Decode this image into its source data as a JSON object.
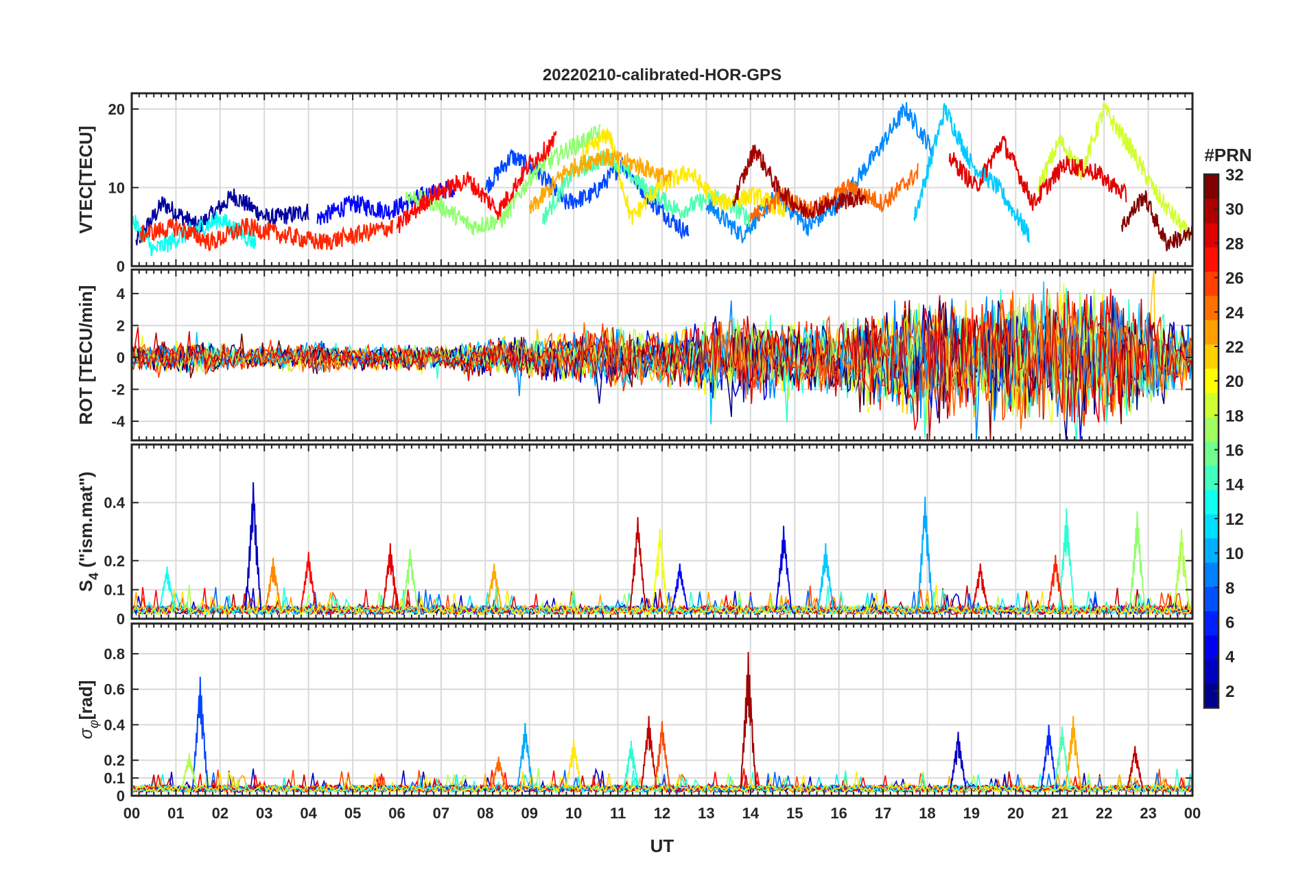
{
  "chart_data": {
    "type": "line",
    "title": "20220210-calibrated-HOR-GPS",
    "xlabel": "UT",
    "x_tick_labels": [
      "00",
      "01",
      "02",
      "03",
      "04",
      "05",
      "06",
      "07",
      "08",
      "09",
      "10",
      "11",
      "12",
      "13",
      "14",
      "15",
      "16",
      "17",
      "18",
      "19",
      "20",
      "21",
      "22",
      "23",
      "00"
    ],
    "xlim": [
      0,
      24
    ],
    "grid": true,
    "colormap": "jet",
    "colorbar": {
      "label": "#PRN",
      "range": [
        1,
        32
      ],
      "tick_values": [
        2,
        4,
        6,
        8,
        10,
        12,
        14,
        16,
        18,
        20,
        22,
        24,
        26,
        28,
        30,
        32
      ],
      "tick_labels": [
        "2",
        "4",
        "6",
        "8",
        "10",
        "12",
        "14",
        "16",
        "18",
        "20",
        "22",
        "24",
        "26",
        "28",
        "30",
        "32"
      ],
      "colors": [
        "#00008f",
        "#0000bf",
        "#0000ef",
        "#0020ff",
        "#0050ff",
        "#0080ff",
        "#00afff",
        "#00dfff",
        "#10ffef",
        "#40ffbf",
        "#70ff8f",
        "#9fff60",
        "#cfff30",
        "#ffff00",
        "#ffcf00",
        "#ff9f00",
        "#ff7000",
        "#ff4000",
        "#ff1000",
        "#df0000",
        "#af0000",
        "#800000"
      ]
    },
    "panels": [
      {
        "id": "vtec",
        "ylabel": "VTEC[TECU]",
        "ylim": [
          0,
          22
        ],
        "y_tick_values": [
          0,
          10,
          20
        ],
        "y_tick_labels": [
          "0",
          "10",
          "20"
        ],
        "series": [
          {
            "prn": 2,
            "x": [
              0.1,
              0.7,
              1.5,
              2.3,
              3.1,
              4.0
            ],
            "y": [
              3,
              8,
              5,
              9,
              6,
              7
            ]
          },
          {
            "prn": 5,
            "x": [
              4.2,
              5.0,
              5.8,
              6.6,
              7.3
            ],
            "y": [
              6,
              8,
              7,
              9,
              10
            ]
          },
          {
            "prn": 7,
            "x": [
              8.0,
              8.6,
              9.2,
              9.8,
              10.4,
              11.1,
              11.8,
              12.6
            ],
            "y": [
              10,
              14,
              12,
              8,
              9,
              13,
              8,
              4
            ]
          },
          {
            "prn": 9,
            "x": [
              13.0,
              13.8,
              14.6,
              15.3,
              16.0,
              16.8,
              17.5,
              18.1
            ],
            "y": [
              8,
              4,
              9,
              5,
              8,
              14,
              20,
              15
            ]
          },
          {
            "prn": 11,
            "x": [
              17.7,
              18.4,
              19.0,
              19.6,
              20.3
            ],
            "y": [
              6,
              20,
              13,
              10,
              4
            ]
          },
          {
            "prn": 13,
            "x": [
              0.0,
              0.5,
              1.2,
              2.0,
              2.8
            ],
            "y": [
              6,
              2,
              4,
              6,
              3
            ]
          },
          {
            "prn": 15,
            "x": [
              9.3,
              10.0,
              10.8,
              11.6,
              12.4,
              13.2,
              14.0
            ],
            "y": [
              6,
              12,
              14,
              10,
              7,
              9,
              6
            ]
          },
          {
            "prn": 17,
            "x": [
              6.2,
              6.9,
              7.7,
              8.4,
              9.1,
              9.9,
              10.6
            ],
            "y": [
              9,
              8,
              5,
              6,
              12,
              15,
              17
            ]
          },
          {
            "prn": 19,
            "x": [
              20.5,
              21.0,
              21.5,
              22.0,
              22.6,
              23.2,
              23.9
            ],
            "y": [
              10,
              16,
              12,
              20,
              15,
              9,
              4
            ]
          },
          {
            "prn": 21,
            "x": [
              10.2,
              10.8,
              11.3,
              11.9,
              12.6,
              13.3,
              14.1,
              14.8
            ],
            "y": [
              14,
              17,
              6,
              10,
              12,
              8,
              9,
              7
            ]
          },
          {
            "prn": 23,
            "x": [
              9.0,
              9.8,
              10.6,
              11.4,
              12.2
            ],
            "y": [
              7,
              12,
              14,
              13,
              11
            ]
          },
          {
            "prn": 25,
            "x": [
              14.0,
              14.7,
              15.4,
              16.2,
              17.0,
              17.8
            ],
            "y": [
              6,
              9,
              7,
              10,
              8,
              12
            ]
          },
          {
            "prn": 27,
            "x": [
              0.2,
              1.0,
              1.8,
              2.6,
              3.4,
              4.3,
              5.1,
              5.9
            ],
            "y": [
              4,
              5,
              3,
              5,
              4,
              3,
              4,
              5
            ]
          },
          {
            "prn": 28,
            "x": [
              6.0,
              6.8,
              7.6,
              8.3,
              9.0,
              9.6
            ],
            "y": [
              5,
              9,
              11,
              7,
              13,
              16
            ]
          },
          {
            "prn": 29,
            "x": [
              18.5,
              19.1,
              19.7,
              20.4,
              21.1,
              21.8,
              22.5
            ],
            "y": [
              14,
              10,
              16,
              8,
              13,
              12,
              9
            ]
          },
          {
            "prn": 31,
            "x": [
              13.6,
              14.1,
              14.6,
              15.2,
              15.9,
              16.6
            ],
            "y": [
              8,
              15,
              10,
              7,
              8,
              9
            ]
          },
          {
            "prn": 32,
            "x": [
              22.4,
              22.9,
              23.4,
              24.0
            ],
            "y": [
              5,
              9,
              3,
              4
            ]
          }
        ]
      },
      {
        "id": "rot",
        "ylabel": "ROT [TECU/min]",
        "ylim": [
          -5.2,
          5.5
        ],
        "y_tick_values": [
          -4,
          -2,
          0,
          2,
          4
        ],
        "y_tick_labels": [
          "-4",
          "-2",
          "0",
          "2",
          "4"
        ],
        "activity": {
          "x": [
            0,
            1,
            2,
            3,
            4,
            5,
            6,
            7,
            8,
            9,
            10,
            11,
            12,
            13,
            14,
            15,
            16,
            17,
            18,
            19,
            20,
            21,
            22,
            23,
            24
          ],
          "amplitude": [
            0.9,
            1.2,
            1.0,
            0.7,
            1.2,
            0.8,
            0.9,
            0.8,
            1.4,
            1.5,
            1.8,
            2.2,
            1.8,
            2.6,
            3.2,
            2.6,
            2.5,
            3.6,
            4.5,
            4.0,
            4.8,
            5.2,
            5.0,
            3.6,
            2.0
          ]
        }
      },
      {
        "id": "s4",
        "ylabel_main": "S",
        "ylabel_sub": "4",
        "ylabel_rest": " (\"ism.mat\")",
        "ylim": [
          0,
          0.6
        ],
        "y_tick_values": [
          0,
          0.1,
          0.2,
          0.4
        ],
        "y_tick_labels": [
          "0",
          "0.1",
          "0.2",
          "0.4"
        ],
        "baseline": 0.03,
        "peaks": [
          {
            "x": 2.75,
            "y": 0.47,
            "prn": 3
          },
          {
            "x": 11.45,
            "y": 0.35,
            "prn": 30
          },
          {
            "x": 11.95,
            "y": 0.31,
            "prn": 20
          },
          {
            "x": 14.75,
            "y": 0.32,
            "prn": 4
          },
          {
            "x": 17.95,
            "y": 0.42,
            "prn": 10
          },
          {
            "x": 21.15,
            "y": 0.38,
            "prn": 14
          },
          {
            "x": 22.75,
            "y": 0.37,
            "prn": 17
          },
          {
            "x": 23.75,
            "y": 0.31,
            "prn": 18
          },
          {
            "x": 0.8,
            "y": 0.18,
            "prn": 13
          },
          {
            "x": 3.2,
            "y": 0.21,
            "prn": 24
          },
          {
            "x": 4.0,
            "y": 0.23,
            "prn": 28
          },
          {
            "x": 5.85,
            "y": 0.26,
            "prn": 29
          },
          {
            "x": 6.3,
            "y": 0.24,
            "prn": 17
          },
          {
            "x": 8.2,
            "y": 0.19,
            "prn": 23
          },
          {
            "x": 12.4,
            "y": 0.19,
            "prn": 5
          },
          {
            "x": 15.7,
            "y": 0.26,
            "prn": 11
          },
          {
            "x": 19.2,
            "y": 0.19,
            "prn": 29
          },
          {
            "x": 20.9,
            "y": 0.22,
            "prn": 27
          }
        ]
      },
      {
        "id": "sigma_phi",
        "ylabel_main": "σ",
        "ylabel_sub": "φ",
        "ylabel_rest": "[rad]",
        "ylim": [
          0,
          0.97
        ],
        "y_tick_values": [
          0,
          0.1,
          0.2,
          0.4,
          0.6,
          0.8
        ],
        "y_tick_labels": [
          "0",
          "0.1",
          "0.2",
          "0.4",
          "0.6",
          "0.8"
        ],
        "baseline": 0.04,
        "peaks": [
          {
            "x": 1.55,
            "y": 0.67,
            "prn": 7
          },
          {
            "x": 13.95,
            "y": 0.81,
            "prn": 31
          },
          {
            "x": 11.7,
            "y": 0.45,
            "prn": 30
          },
          {
            "x": 12.0,
            "y": 0.42,
            "prn": 26
          },
          {
            "x": 8.9,
            "y": 0.41,
            "prn": 10
          },
          {
            "x": 10.0,
            "y": 0.32,
            "prn": 21
          },
          {
            "x": 11.3,
            "y": 0.31,
            "prn": 14
          },
          {
            "x": 18.7,
            "y": 0.36,
            "prn": 3
          },
          {
            "x": 20.75,
            "y": 0.4,
            "prn": 6
          },
          {
            "x": 21.3,
            "y": 0.45,
            "prn": 23
          },
          {
            "x": 21.05,
            "y": 0.39,
            "prn": 15
          },
          {
            "x": 22.7,
            "y": 0.28,
            "prn": 30
          },
          {
            "x": 1.3,
            "y": 0.24,
            "prn": 18
          },
          {
            "x": 8.3,
            "y": 0.22,
            "prn": 25
          }
        ]
      }
    ]
  }
}
